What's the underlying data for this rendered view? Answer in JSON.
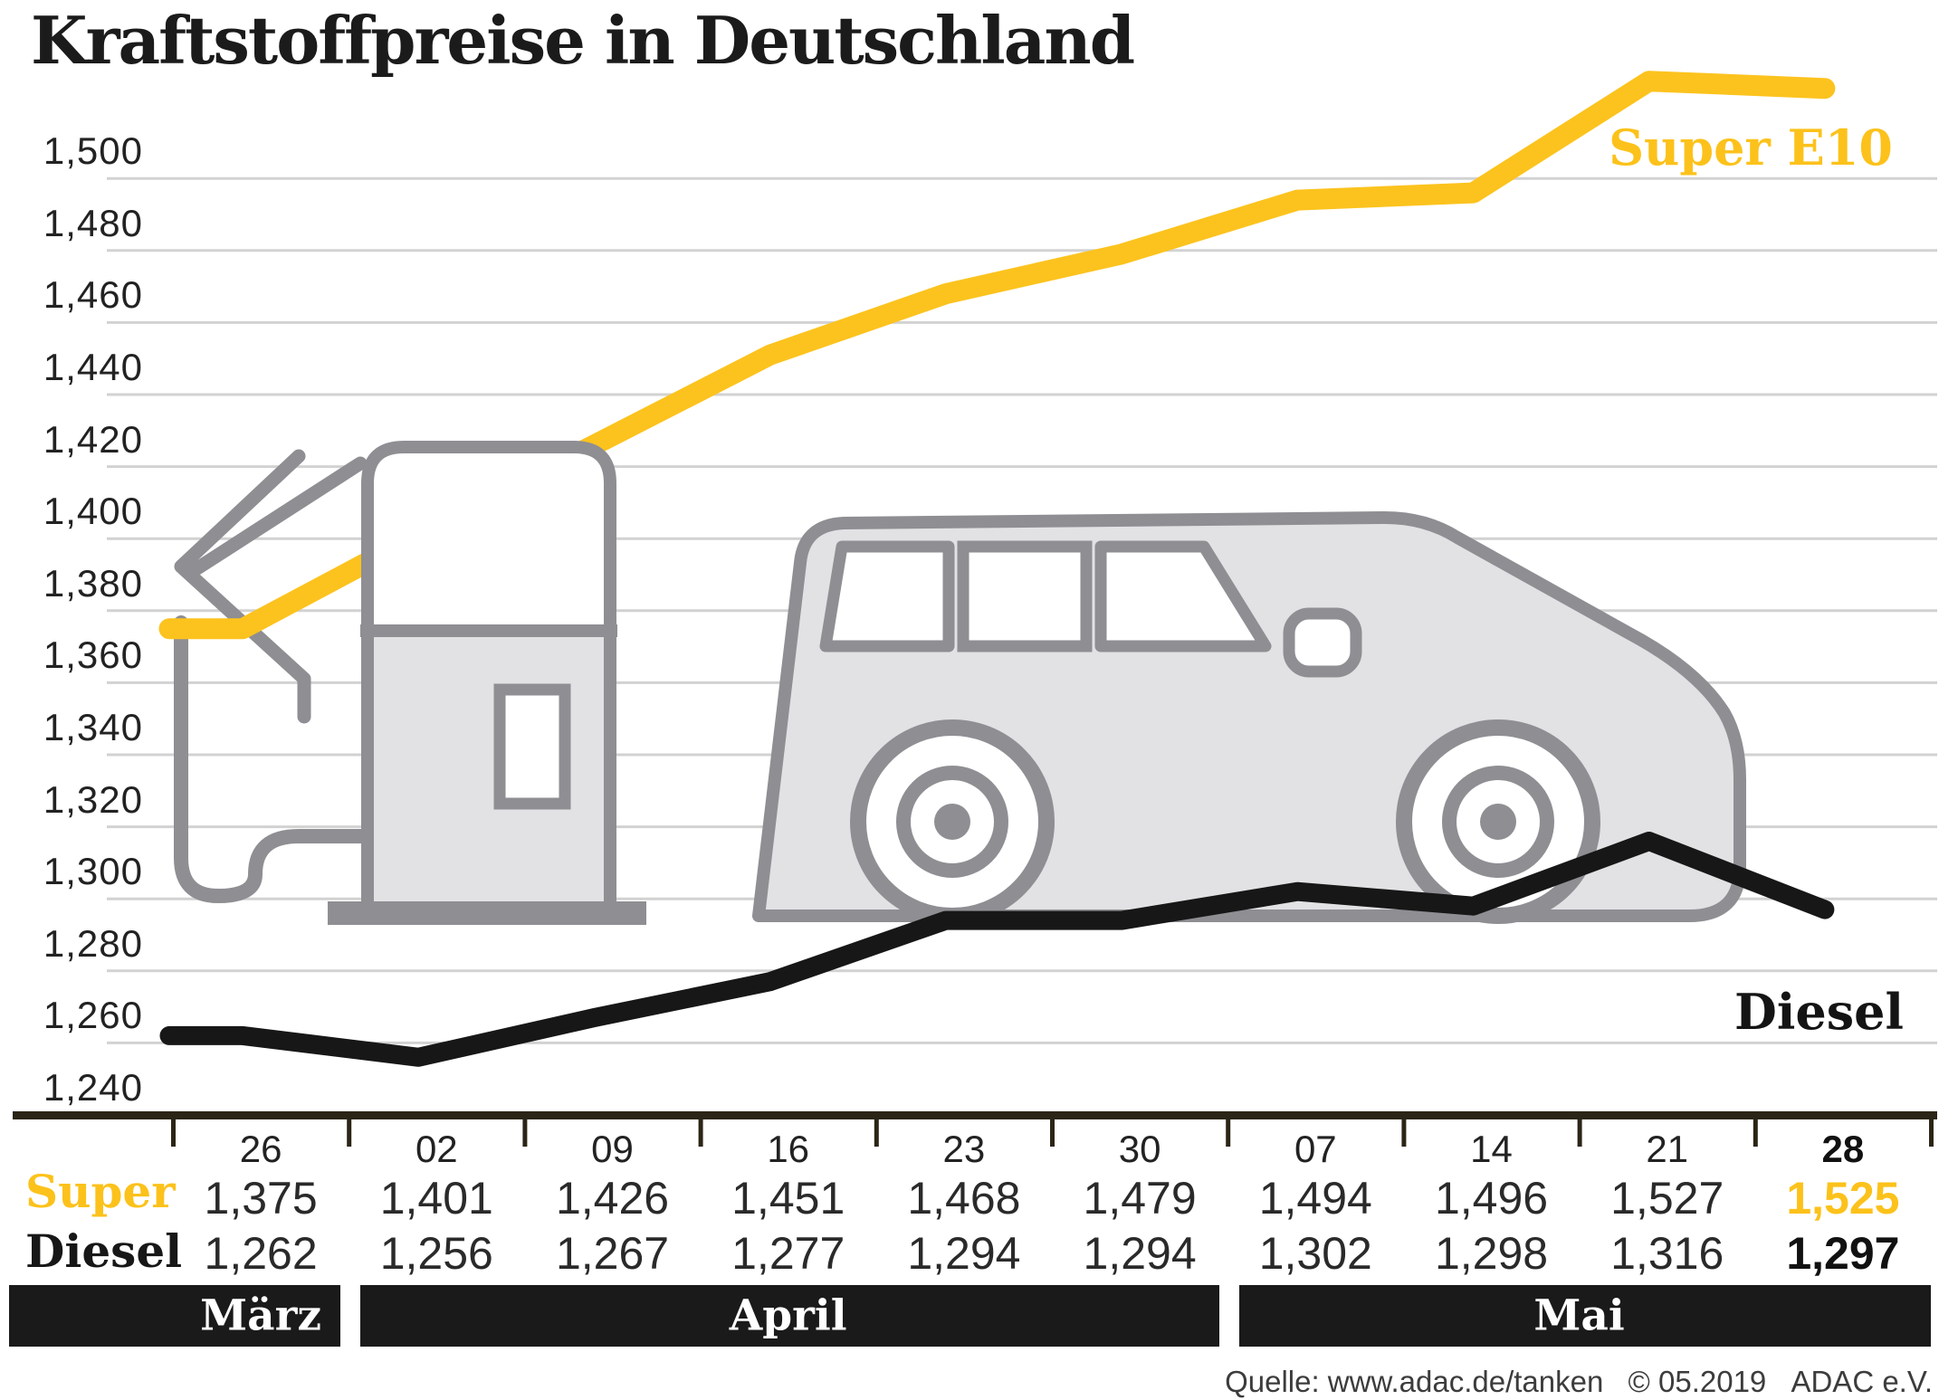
{
  "title": "Kraftstoffpreise in Deutschland",
  "source_note": {
    "quelle": "Quelle: www.adac.de/tanken",
    "copyright": "© 05.2019",
    "org": "ADAC e.V."
  },
  "chart_data": {
    "type": "line",
    "title": "Kraftstoffpreise in Deutschland",
    "categories": [
      "26",
      "02",
      "09",
      "16",
      "23",
      "30",
      "07",
      "14",
      "21",
      "28"
    ],
    "months": [
      {
        "label": "März",
        "from_col": 0,
        "to_col": 1
      },
      {
        "label": "April",
        "from_col": 1,
        "to_col": 6
      },
      {
        "label": "Mai",
        "from_col": 6,
        "to_col": 10
      }
    ],
    "y_axis": {
      "min": 1240,
      "max": 1500,
      "step": 20,
      "decimal_format": "comma-thousandths"
    },
    "grid": true,
    "legend_position": "inline-right",
    "highlight_last_column": true,
    "series": [
      {
        "name": "Super",
        "line_label": "Super E10",
        "color": "#fcc31e",
        "values": [
          1375,
          1401,
          1426,
          1451,
          1468,
          1479,
          1494,
          1496,
          1527,
          1525
        ]
      },
      {
        "name": "Diesel",
        "line_label": "Diesel",
        "color": "#171717",
        "values": [
          1262,
          1256,
          1267,
          1277,
          1294,
          1294,
          1302,
          1298,
          1316,
          1297
        ]
      }
    ]
  }
}
